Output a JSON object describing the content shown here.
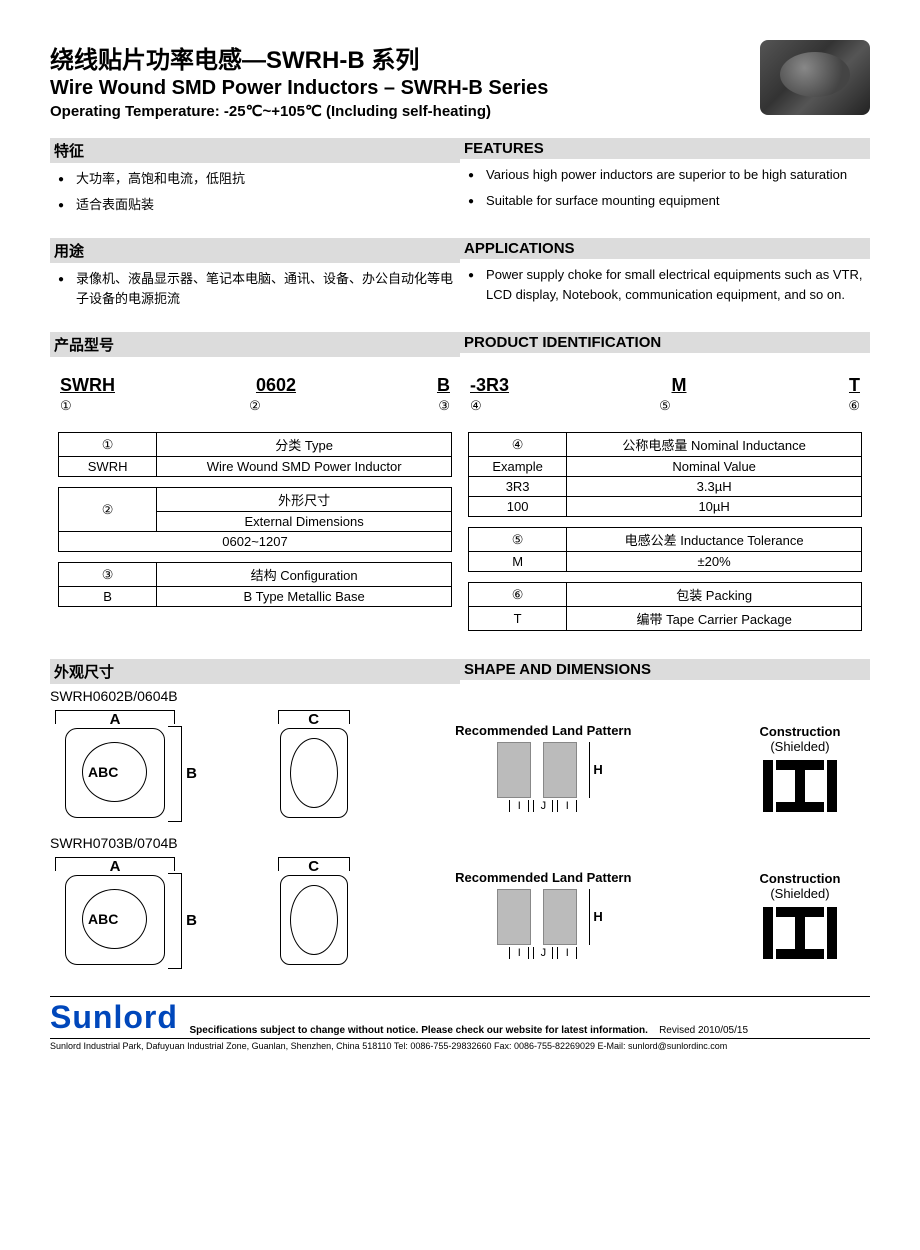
{
  "title": {
    "cn": "绕线贴片功率电感—SWRH-B 系列",
    "en": "Wire Wound SMD Power Inductors – SWRH-B Series",
    "sub": "Operating Temperature: -25℃~+105℃ (Including self-heating)"
  },
  "sections": {
    "features_cn_hdr": "特征",
    "features_en_hdr": "FEATURES",
    "features_cn": [
      "大功率，高饱和电流，低阻抗",
      "适合表面贴装"
    ],
    "features_en": [
      "Various high power inductors are superior to be high saturation",
      "Suitable for surface mounting equipment"
    ],
    "apps_cn_hdr": "用途",
    "apps_en_hdr": "APPLICATIONS",
    "apps_cn": [
      "录像机、液晶显示器、笔记本电脑、通讯、设备、办公自动化等电子设备的电源扼流"
    ],
    "apps_en": [
      "Power supply choke for small electrical equipments such as VTR, LCD display, Notebook, communication equipment, and so on."
    ],
    "pid_cn_hdr": "产品型号",
    "pid_en_hdr": "PRODUCT IDENTIFICATION",
    "shape_cn_hdr": "外观尺寸",
    "shape_en_hdr": "SHAPE AND DIMENSIONS"
  },
  "code": {
    "parts": [
      "SWRH",
      "0602",
      "B",
      "-3R3",
      "M",
      "T"
    ],
    "circles": [
      "①",
      "②",
      "③",
      "④",
      "⑤",
      "⑥"
    ]
  },
  "tables": {
    "t1": {
      "circ": "①",
      "title": "分类 Type",
      "rows": [
        [
          "SWRH",
          "Wire Wound SMD Power Inductor"
        ]
      ]
    },
    "t2": {
      "circ": "②",
      "title_cn": "外形尺寸",
      "title_en": "External Dimensions",
      "value": "0602~1207"
    },
    "t3": {
      "circ": "③",
      "title": "结构 Configuration",
      "rows": [
        [
          "B",
          "B Type Metallic Base"
        ]
      ]
    },
    "t4": {
      "circ": "④",
      "title": "公称电感量 Nominal Inductance",
      "header": [
        "Example",
        "Nominal Value"
      ],
      "rows": [
        [
          "3R3",
          "3.3µH"
        ],
        [
          "100",
          "10µH"
        ]
      ]
    },
    "t5": {
      "circ": "⑤",
      "title": "电感公差 Inductance Tolerance",
      "rows": [
        [
          "M",
          "±20%"
        ]
      ]
    },
    "t6": {
      "circ": "⑥",
      "title": "包装 Packing",
      "rows": [
        [
          "T",
          "编带 Tape Carrier Package"
        ]
      ]
    }
  },
  "shapes": {
    "variant1": "SWRH0602B/0604B",
    "variant2": "SWRH0703B/0704B",
    "dims": {
      "A": "A",
      "B": "B",
      "C": "C",
      "ABC": "ABC"
    },
    "land": {
      "title": "Recommended Land Pattern",
      "I": "I",
      "J": "J",
      "H": "H"
    },
    "constr": {
      "title": "Construction",
      "sub": "(Shielded)"
    }
  },
  "footer": {
    "brand": "Sunlord",
    "note": "Specifications subject to change without notice. Please check our website for latest information.",
    "rev": "Revised 2010/05/15",
    "addr": "Sunlord Industrial Park, Dafuyuan Industrial Zone, Guanlan, Shenzhen, China 518110 Tel: 0086-755-29832660 Fax: 0086-755-82269029 E-Mail: sunlord@sunlordinc.com"
  }
}
